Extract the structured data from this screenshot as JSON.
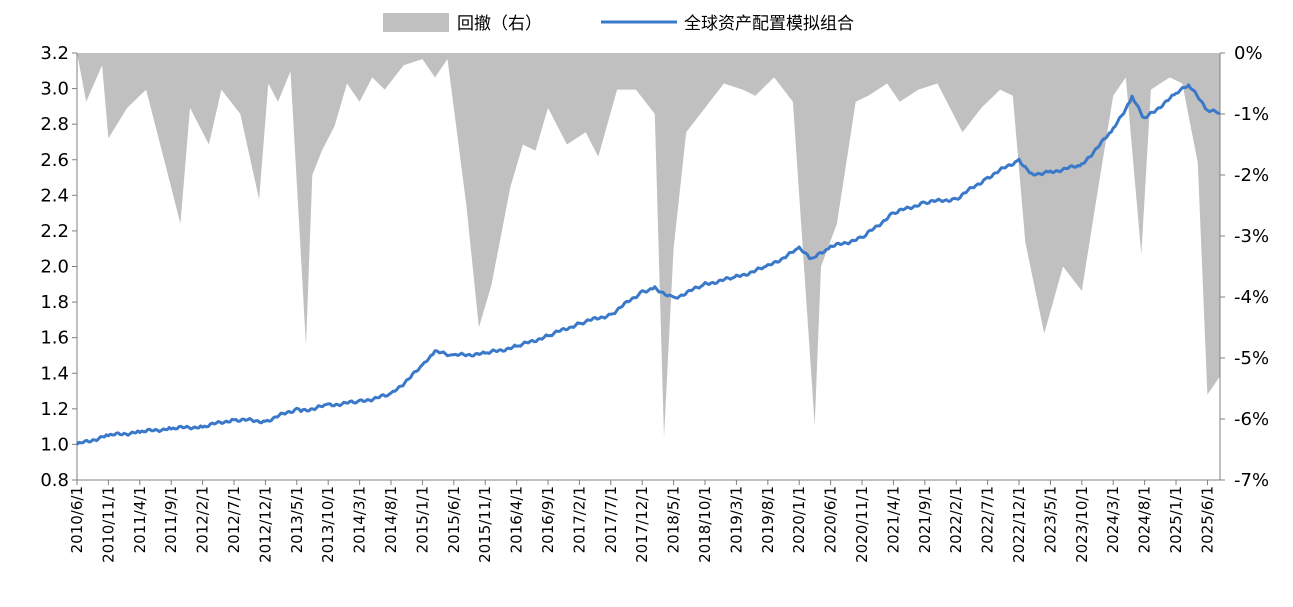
{
  "chart_data": {
    "type": "line",
    "title": "",
    "legend": {
      "placement": "top-center",
      "items": [
        {
          "name": "回撤（右）",
          "style": "area",
          "color": "#c0c0c0"
        },
        {
          "name": "全球资产配置模拟组合",
          "style": "line",
          "color": "#3a78c9"
        }
      ]
    },
    "y_left": {
      "min": 0.8,
      "max": 3.2,
      "ticks": [
        "0.8",
        "1.0",
        "1.2",
        "1.4",
        "1.6",
        "1.8",
        "2.0",
        "2.2",
        "2.4",
        "2.6",
        "2.8",
        "3.0",
        "3.2"
      ]
    },
    "y_right": {
      "min": -7,
      "max": 0,
      "ticks": [
        "0%",
        "-1%",
        "-2%",
        "-3%",
        "-4%",
        "-5%",
        "-6%",
        "-7%"
      ]
    },
    "x_range": [
      "2010/6/1",
      "2025/8/1"
    ],
    "x_ticks": [
      "2010/6/1",
      "2010/11/1",
      "2011/4/1",
      "2011/9/1",
      "2012/2/1",
      "2012/7/1",
      "2012/12/1",
      "2013/5/1",
      "2013/10/1",
      "2014/3/1",
      "2014/8/1",
      "2015/1/1",
      "2015/6/1",
      "2015/11/1",
      "2016/4/1",
      "2016/9/1",
      "2017/2/1",
      "2017/7/1",
      "2017/12/1",
      "2018/5/1",
      "2018/10/1",
      "2019/3/1",
      "2019/8/1",
      "2020/1/1",
      "2020/6/1",
      "2020/11/1",
      "2021/4/1",
      "2021/9/1",
      "2022/2/1",
      "2022/7/1",
      "2022/12/1",
      "2023/5/1",
      "2023/10/1",
      "2024/3/1",
      "2024/8/1",
      "2025/1/1",
      "2025/6/1"
    ],
    "series": [
      {
        "name": "全球资产配置模拟组合",
        "axis": "left",
        "color": "#3a78c9",
        "x": [
          "2010/6/1",
          "2010/11/1",
          "2011/4/1",
          "2011/9/1",
          "2012/2/1",
          "2012/7/1",
          "2012/12/1",
          "2013/5/1",
          "2013/6/1",
          "2013/10/1",
          "2014/3/1",
          "2014/8/1",
          "2015/1/1",
          "2015/3/1",
          "2015/6/1",
          "2015/11/1",
          "2016/4/1",
          "2016/9/1",
          "2017/2/1",
          "2017/7/1",
          "2017/12/1",
          "2018/2/1",
          "2018/5/1",
          "2018/10/1",
          "2019/3/1",
          "2019/8/1",
          "2020/1/1",
          "2020/3/1",
          "2020/6/1",
          "2020/11/1",
          "2021/4/1",
          "2021/9/1",
          "2022/2/1",
          "2022/7/1",
          "2022/12/1",
          "2023/2/1",
          "2023/5/1",
          "2023/10/1",
          "2024/3/1",
          "2024/6/1",
          "2024/8/1",
          "2025/1/1",
          "2025/3/1",
          "2025/6/1",
          "2025/8/1"
        ],
        "values": [
          1.0,
          1.05,
          1.07,
          1.09,
          1.1,
          1.14,
          1.13,
          1.2,
          1.19,
          1.22,
          1.24,
          1.28,
          1.44,
          1.52,
          1.5,
          1.51,
          1.55,
          1.61,
          1.68,
          1.73,
          1.86,
          1.88,
          1.82,
          1.9,
          1.94,
          2.0,
          2.1,
          2.04,
          2.11,
          2.16,
          2.3,
          2.36,
          2.38,
          2.5,
          2.6,
          2.52,
          2.53,
          2.57,
          2.77,
          2.95,
          2.83,
          2.97,
          3.02,
          2.88,
          2.86
        ]
      },
      {
        "name": "回撤（右）",
        "axis": "right",
        "color": "#c0c0c0",
        "x": [
          "2010/6/1",
          "2010/7/15",
          "2010/10/1",
          "2010/11/1",
          "2011/2/1",
          "2011/5/1",
          "2011/8/1",
          "2011/10/15",
          "2011/12/1",
          "2012/3/1",
          "2012/5/1",
          "2012/8/1",
          "2012/11/1",
          "2012/12/15",
          "2013/2/1",
          "2013/4/1",
          "2013/6/15",
          "2013/7/15",
          "2013/9/1",
          "2013/11/1",
          "2014/1/1",
          "2014/3/1",
          "2014/5/1",
          "2014/7/1",
          "2014/10/1",
          "2015/1/1",
          "2015/3/1",
          "2015/5/1",
          "2015/8/1",
          "2015/10/1",
          "2015/12/1",
          "2016/3/1",
          "2016/5/1",
          "2016/7/1",
          "2016/9/1",
          "2016/12/1",
          "2017/3/1",
          "2017/5/1",
          "2017/8/1",
          "2017/11/1",
          "2018/2/1",
          "2018/3/15",
          "2018/5/1",
          "2018/7/1",
          "2018/10/1",
          "2019/1/1",
          "2019/4/1",
          "2019/6/1",
          "2019/9/1",
          "2019/12/1",
          "2020/3/15",
          "2020/4/15",
          "2020/7/1",
          "2020/10/1",
          "2020/12/1",
          "2021/3/1",
          "2021/5/1",
          "2021/8/1",
          "2021/11/1",
          "2022/1/1",
          "2022/3/1",
          "2022/6/1",
          "2022/9/1",
          "2022/11/1",
          "2023/1/1",
          "2023/4/1",
          "2023/7/1",
          "2023/10/1",
          "2023/12/1",
          "2024/3/1",
          "2024/5/1",
          "2024/7/15",
          "2024/9/1",
          "2024/12/1",
          "2025/2/1",
          "2025/4/15",
          "2025/6/1",
          "2025/8/1"
        ],
        "values": [
          0,
          -0.8,
          -0.2,
          -1.4,
          -0.9,
          -0.6,
          -1.8,
          -2.8,
          -0.9,
          -1.5,
          -0.6,
          -1.0,
          -2.4,
          -0.5,
          -0.8,
          -0.3,
          -4.8,
          -2.0,
          -1.6,
          -1.2,
          -0.5,
          -0.8,
          -0.4,
          -0.6,
          -0.2,
          -0.1,
          -0.4,
          -0.1,
          -2.5,
          -4.5,
          -3.8,
          -2.2,
          -1.5,
          -1.6,
          -0.9,
          -1.5,
          -1.3,
          -1.7,
          -0.6,
          -0.6,
          -1.0,
          -6.3,
          -3.2,
          -1.3,
          -0.9,
          -0.5,
          -0.6,
          -0.7,
          -0.4,
          -0.8,
          -6.1,
          -3.5,
          -2.8,
          -0.8,
          -0.7,
          -0.5,
          -0.8,
          -0.6,
          -0.5,
          -0.9,
          -1.3,
          -0.9,
          -0.6,
          -0.7,
          -3.1,
          -4.6,
          -3.5,
          -3.9,
          -2.6,
          -0.7,
          -0.4,
          -3.3,
          -0.6,
          -0.4,
          -0.5,
          -1.8,
          -5.6,
          -5.3
        ]
      }
    ]
  }
}
